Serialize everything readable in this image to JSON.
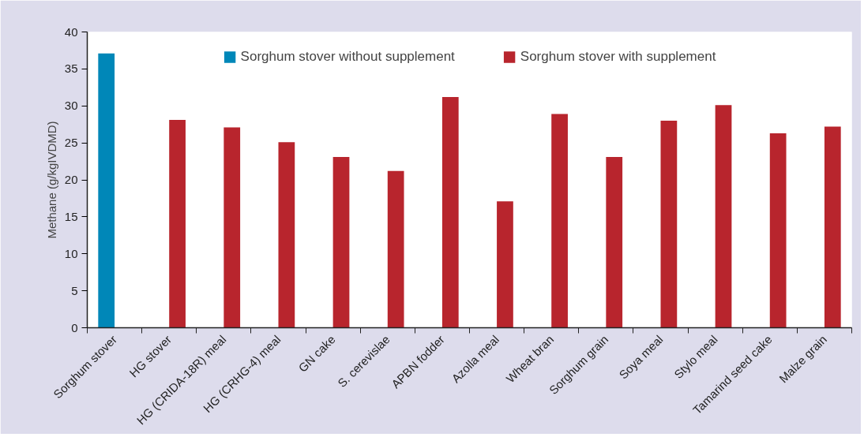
{
  "chart_data": {
    "type": "bar",
    "ylabel": "Methane (g/kgIVDMD)",
    "categories": [
      "Sorghum stover",
      "HG stover",
      "HG (CRIDA-18R) meal",
      "HG (CRHG-4) meal",
      "GN cake",
      "S. cerevislae",
      "APBN fodder",
      "Azolla meal",
      "Wheat bran",
      "Sorghum grain",
      "Soya meal",
      "Stylo meal",
      "Tamarind seed cake",
      "Malze grain"
    ],
    "series": [
      {
        "name": "Sorghum stover without supplement",
        "color": "#0087b8",
        "values": [
          37.1,
          null,
          null,
          null,
          null,
          null,
          null,
          null,
          null,
          null,
          null,
          null,
          null,
          null
        ]
      },
      {
        "name": "Sorghum stover with supplement",
        "color": "#b8252d",
        "values": [
          null,
          28.1,
          27.1,
          25.1,
          23.1,
          21.2,
          31.2,
          17.1,
          28.9,
          23.1,
          28.0,
          30.1,
          26.3,
          27.2
        ]
      }
    ],
    "ylim": [
      0,
      40
    ],
    "yticks": [
      0,
      5,
      10,
      15,
      20,
      25,
      30,
      35,
      40
    ],
    "grid": false,
    "legend": "top"
  }
}
